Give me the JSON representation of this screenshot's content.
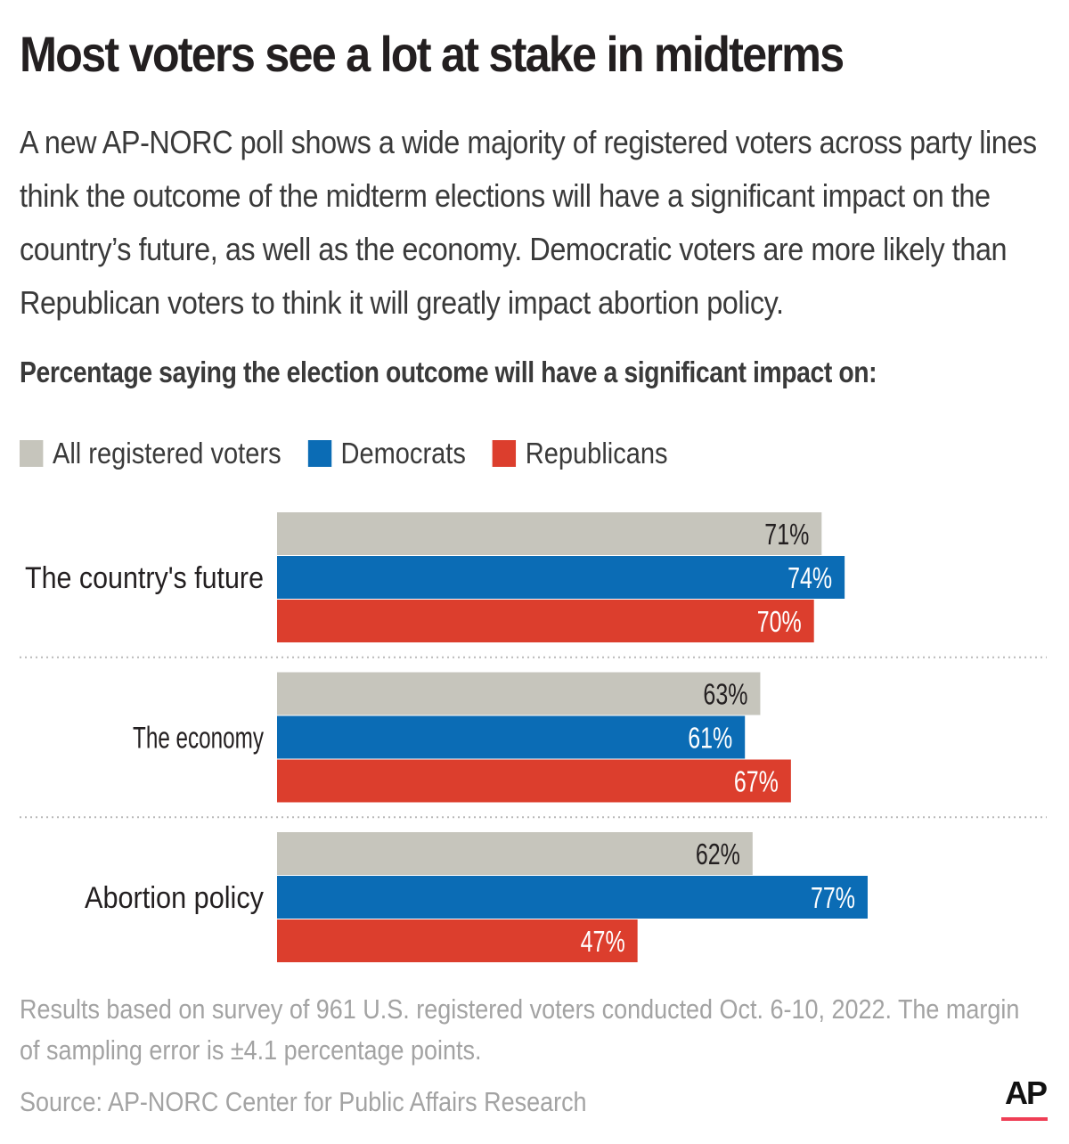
{
  "title": "Most voters see a lot at stake in midterms",
  "intro": "A new AP-NORC poll shows a wide majority of registered voters across party lines think the outcome of the midterm elections will have a significant impact on the country’s future, as well as the economy. Democratic voters are more likely than Republican voters to think it will greatly impact abortion policy.",
  "chart_data": {
    "type": "bar",
    "orientation": "horizontal",
    "title": "Percentage saying the election outcome will have a significant impact on:",
    "categories": [
      "The country's future",
      "The economy",
      "Abortion policy"
    ],
    "series": [
      {
        "name": "All registered voters",
        "color": "#c6c5bc",
        "label_color": "#231f20",
        "values": [
          71,
          63,
          62
        ],
        "labels": [
          "71%",
          "63%",
          "62%"
        ]
      },
      {
        "name": "Democrats",
        "color": "#0b6cb5",
        "label_color": "#ffffff",
        "values": [
          74,
          61,
          77
        ],
        "labels": [
          "74%",
          "61%",
          "77%"
        ]
      },
      {
        "name": "Republicans",
        "color": "#dc3e2d",
        "label_color": "#ffffff",
        "values": [
          70,
          67,
          47
        ],
        "labels": [
          "70%",
          "67%",
          "47%"
        ]
      }
    ],
    "xlim": [
      0,
      100
    ],
    "grid": false,
    "legend_position": "top-left"
  },
  "footnote": "Results based on survey of 961 U.S. registered voters conducted Oct. 6-10, 2022. The margin of sampling error is ±4.1 percentage points.",
  "source": "Source: AP-NORC Center for Public Affairs Research",
  "logo_text": "AP"
}
